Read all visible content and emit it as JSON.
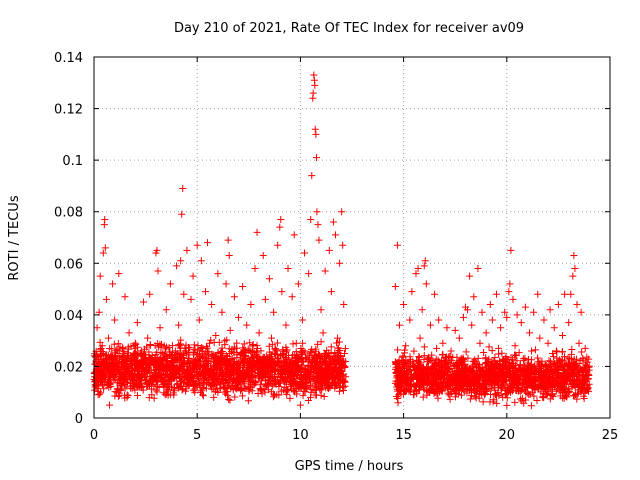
{
  "chart_data": {
    "type": "scatter",
    "title": "Day 210 of 2021, Rate Of TEC Index for receiver av09",
    "xlabel": "GPS time / hours",
    "ylabel": "ROTI / TECUs",
    "xlim": [
      0,
      25
    ],
    "ylim": [
      0,
      0.14
    ],
    "xticks": [
      "0",
      "5",
      "10",
      "15",
      "20",
      "25"
    ],
    "yticks": [
      "0",
      "0.02",
      "0.04",
      "0.06",
      "0.08",
      "0.1",
      "0.12",
      "0.14"
    ],
    "grid": true,
    "marker": "+",
    "color": "#ff0000",
    "series": [
      {
        "points": [
          [
            0.05,
            0.012
          ],
          [
            0.1,
            0.022
          ],
          [
            0.15,
            0.035
          ],
          [
            0.2,
            0.009
          ],
          [
            0.25,
            0.041
          ],
          [
            0.3,
            0.055
          ],
          [
            0.35,
            0.018
          ],
          [
            0.4,
            0.028
          ],
          [
            0.45,
            0.064
          ],
          [
            0.5,
            0.075
          ],
          [
            0.52,
            0.077
          ],
          [
            0.55,
            0.066
          ],
          [
            0.6,
            0.046
          ],
          [
            0.65,
            0.014
          ],
          [
            0.7,
            0.031
          ],
          [
            0.75,
            0.005
          ],
          [
            0.8,
            0.024
          ],
          [
            0.9,
            0.052
          ],
          [
            1.0,
            0.038
          ],
          [
            1.1,
            0.019
          ],
          [
            1.2,
            0.056
          ],
          [
            1.3,
            0.011
          ],
          [
            1.4,
            0.027
          ],
          [
            1.5,
            0.047
          ],
          [
            1.6,
            0.008
          ],
          [
            1.7,
            0.033
          ],
          [
            1.8,
            0.021
          ],
          [
            1.9,
            0.015
          ],
          [
            2.0,
            0.029
          ],
          [
            2.1,
            0.037
          ],
          [
            2.2,
            0.012
          ],
          [
            2.3,
            0.026
          ],
          [
            2.4,
            0.045
          ],
          [
            2.5,
            0.018
          ],
          [
            2.6,
            0.031
          ],
          [
            2.7,
            0.048
          ],
          [
            2.8,
            0.009
          ],
          [
            2.9,
            0.022
          ],
          [
            3.0,
            0.064
          ],
          [
            3.05,
            0.065
          ],
          [
            3.1,
            0.057
          ],
          [
            3.2,
            0.035
          ],
          [
            3.3,
            0.014
          ],
          [
            3.4,
            0.028
          ],
          [
            3.5,
            0.042
          ],
          [
            3.6,
            0.011
          ],
          [
            3.7,
            0.052
          ],
          [
            3.8,
            0.024
          ],
          [
            3.9,
            0.017
          ],
          [
            4.0,
            0.059
          ],
          [
            4.1,
            0.036
          ],
          [
            4.2,
            0.061
          ],
          [
            4.25,
            0.079
          ],
          [
            4.3,
            0.089
          ],
          [
            4.35,
            0.048
          ],
          [
            4.4,
            0.027
          ],
          [
            4.5,
            0.065
          ],
          [
            4.6,
            0.013
          ],
          [
            4.7,
            0.046
          ],
          [
            4.8,
            0.055
          ],
          [
            4.9,
            0.021
          ],
          [
            5.0,
            0.067
          ],
          [
            5.1,
            0.038
          ],
          [
            5.2,
            0.061
          ],
          [
            5.3,
            0.016
          ],
          [
            5.4,
            0.049
          ],
          [
            5.5,
            0.068
          ],
          [
            5.6,
            0.029
          ],
          [
            5.7,
            0.044
          ],
          [
            5.8,
            0.008
          ],
          [
            5.9,
            0.032
          ],
          [
            6.0,
            0.056
          ],
          [
            6.1,
            0.023
          ],
          [
            6.2,
            0.041
          ],
          [
            6.3,
            0.012
          ],
          [
            6.4,
            0.052
          ],
          [
            6.5,
            0.069
          ],
          [
            6.55,
            0.063
          ],
          [
            6.6,
            0.034
          ],
          [
            6.7,
            0.019
          ],
          [
            6.8,
            0.047
          ],
          [
            6.9,
            0.027
          ],
          [
            7.0,
            0.039
          ],
          [
            7.1,
            0.011
          ],
          [
            7.2,
            0.051
          ],
          [
            7.3,
            0.022
          ],
          [
            7.4,
            0.036
          ],
          [
            7.5,
            0.015
          ],
          [
            7.6,
            0.044
          ],
          [
            7.7,
            0.028
          ],
          [
            7.8,
            0.058
          ],
          [
            7.9,
            0.072
          ],
          [
            8.0,
            0.033
          ],
          [
            8.1,
            0.021
          ],
          [
            8.2,
            0.063
          ],
          [
            8.3,
            0.046
          ],
          [
            8.4,
            0.013
          ],
          [
            8.5,
            0.054
          ],
          [
            8.6,
            0.031
          ],
          [
            8.7,
            0.041
          ],
          [
            8.8,
            0.018
          ],
          [
            8.9,
            0.067
          ],
          [
            9.0,
            0.074
          ],
          [
            9.05,
            0.077
          ],
          [
            9.1,
            0.049
          ],
          [
            9.2,
            0.025
          ],
          [
            9.3,
            0.036
          ],
          [
            9.4,
            0.058
          ],
          [
            9.5,
            0.014
          ],
          [
            9.6,
            0.047
          ],
          [
            9.7,
            0.071
          ],
          [
            9.8,
            0.029
          ],
          [
            9.9,
            0.052
          ],
          [
            10.0,
            0.005
          ],
          [
            10.1,
            0.038
          ],
          [
            10.2,
            0.064
          ],
          [
            10.3,
            0.023
          ],
          [
            10.4,
            0.056
          ],
          [
            10.5,
            0.077
          ],
          [
            10.55,
            0.094
          ],
          [
            10.6,
            0.124
          ],
          [
            10.62,
            0.126
          ],
          [
            10.65,
            0.133
          ],
          [
            10.68,
            0.131
          ],
          [
            10.7,
            0.129
          ],
          [
            10.72,
            0.112
          ],
          [
            10.75,
            0.11
          ],
          [
            10.78,
            0.101
          ],
          [
            10.8,
            0.08
          ],
          [
            10.85,
            0.075
          ],
          [
            10.9,
            0.069
          ],
          [
            11.0,
            0.042
          ],
          [
            11.1,
            0.033
          ],
          [
            11.2,
            0.057
          ],
          [
            11.3,
            0.021
          ],
          [
            11.4,
            0.065
          ],
          [
            11.5,
            0.049
          ],
          [
            11.6,
            0.076
          ],
          [
            11.7,
            0.071
          ],
          [
            11.8,
            0.031
          ],
          [
            11.9,
            0.06
          ],
          [
            12.0,
            0.08
          ],
          [
            12.05,
            0.067
          ],
          [
            12.1,
            0.044
          ],
          [
            12.2,
            0.016
          ],
          [
            14.6,
            0.051
          ],
          [
            14.7,
            0.067
          ],
          [
            14.8,
            0.036
          ],
          [
            14.9,
            0.012
          ],
          [
            15.0,
            0.044
          ],
          [
            15.1,
            0.028
          ],
          [
            15.2,
            0.017
          ],
          [
            15.3,
            0.038
          ],
          [
            15.4,
            0.049
          ],
          [
            15.5,
            0.009
          ],
          [
            15.6,
            0.056
          ],
          [
            15.7,
            0.058
          ],
          [
            15.8,
            0.031
          ],
          [
            15.9,
            0.042
          ],
          [
            16.0,
            0.059
          ],
          [
            16.05,
            0.061
          ],
          [
            16.1,
            0.052
          ],
          [
            16.2,
            0.023
          ],
          [
            16.3,
            0.036
          ],
          [
            16.4,
            0.014
          ],
          [
            16.5,
            0.048
          ],
          [
            16.6,
            0.027
          ],
          [
            16.7,
            0.038
          ],
          [
            16.8,
            0.011
          ],
          [
            16.9,
            0.029
          ],
          [
            17.0,
            0.021
          ],
          [
            17.1,
            0.035
          ],
          [
            17.2,
            0.009
          ],
          [
            17.3,
            0.026
          ],
          [
            17.4,
            0.017
          ],
          [
            17.5,
            0.034
          ],
          [
            17.6,
            0.012
          ],
          [
            17.7,
            0.031
          ],
          [
            17.8,
            0.023
          ],
          [
            17.9,
            0.039
          ],
          [
            18.0,
            0.043
          ],
          [
            18.1,
            0.042
          ],
          [
            18.2,
            0.055
          ],
          [
            18.3,
            0.036
          ],
          [
            18.4,
            0.047
          ],
          [
            18.5,
            0.016
          ],
          [
            18.6,
            0.058
          ],
          [
            18.7,
            0.029
          ],
          [
            18.8,
            0.041
          ],
          [
            18.9,
            0.011
          ],
          [
            19.0,
            0.033
          ],
          [
            19.1,
            0.022
          ],
          [
            19.2,
            0.044
          ],
          [
            19.3,
            0.038
          ],
          [
            19.4,
            0.018
          ],
          [
            19.5,
            0.048
          ],
          [
            19.6,
            0.027
          ],
          [
            19.7,
            0.035
          ],
          [
            19.8,
            0.008
          ],
          [
            19.9,
            0.041
          ],
          [
            20.0,
            0.039
          ],
          [
            20.1,
            0.049
          ],
          [
            20.15,
            0.052
          ],
          [
            20.2,
            0.065
          ],
          [
            20.3,
            0.046
          ],
          [
            20.4,
            0.028
          ],
          [
            20.5,
            0.04
          ],
          [
            20.6,
            0.015
          ],
          [
            20.7,
            0.037
          ],
          [
            20.8,
            0.023
          ],
          [
            20.9,
            0.043
          ],
          [
            21.0,
            0.012
          ],
          [
            21.1,
            0.033
          ],
          [
            21.2,
            0.026
          ],
          [
            21.3,
            0.041
          ],
          [
            21.4,
            0.019
          ],
          [
            21.5,
            0.048
          ],
          [
            21.6,
            0.031
          ],
          [
            21.7,
            0.022
          ],
          [
            21.8,
            0.038
          ],
          [
            21.9,
            0.009
          ],
          [
            22.0,
            0.029
          ],
          [
            22.1,
            0.042
          ],
          [
            22.2,
            0.017
          ],
          [
            22.3,
            0.035
          ],
          [
            22.4,
            0.026
          ],
          [
            22.5,
            0.044
          ],
          [
            22.6,
            0.013
          ],
          [
            22.7,
            0.032
          ],
          [
            22.8,
            0.048
          ],
          [
            22.9,
            0.021
          ],
          [
            23.0,
            0.037
          ],
          [
            23.1,
            0.048
          ],
          [
            23.2,
            0.055
          ],
          [
            23.25,
            0.063
          ],
          [
            23.3,
            0.058
          ],
          [
            23.4,
            0.044
          ],
          [
            23.5,
            0.029
          ],
          [
            23.6,
            0.041
          ],
          [
            23.7,
            0.016
          ],
          [
            23.8,
            0.027
          ],
          [
            23.9,
            0.011
          ]
        ],
        "bands": [
          {
            "x": [
              0,
              12.2
            ],
            "y": [
              0.005,
              0.032
            ]
          },
          {
            "x": [
              14.6,
              24
            ],
            "y": [
              0.004,
              0.028
            ]
          }
        ]
      }
    ]
  }
}
